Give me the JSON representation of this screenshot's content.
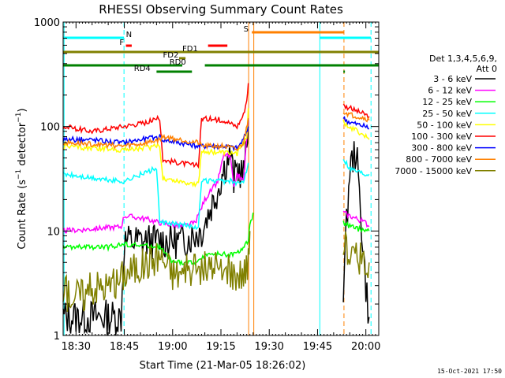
{
  "chart_data": {
    "type": "line",
    "title": "RHESSI Observing Summary Count Rates",
    "xlabel": "Start Time (21-Mar-05 18:26:02)",
    "ylabel_prefix": "Count Rate (s",
    "ylabel_exp": "−1",
    "ylabel_mid": " detector",
    "ylabel_suffix": ")",
    "yscale": "log",
    "ylim": [
      1,
      1000
    ],
    "xlim": [
      26.0,
      124.0
    ],
    "x_unit": "minutes after 18:00 UT",
    "xticks": [
      {
        "value": 30,
        "label": "18:30"
      },
      {
        "value": 45,
        "label": "18:45"
      },
      {
        "value": 60,
        "label": "19:00"
      },
      {
        "value": 75,
        "label": "19:15"
      },
      {
        "value": 90,
        "label": "19:30"
      },
      {
        "value": 105,
        "label": "19:45"
      },
      {
        "value": 120,
        "label": "20:00"
      }
    ],
    "yticks": [
      {
        "value": 1,
        "label": "1"
      },
      {
        "value": 10,
        "label": "10"
      },
      {
        "value": 100,
        "label": "100"
      },
      {
        "value": 1000,
        "label": "1000"
      }
    ],
    "legend_header": [
      "Det 1,3,4,5,6,9,",
      "Att 0"
    ],
    "legend_position": "right",
    "grid": false,
    "series": [
      {
        "name": "3 - 6 keV",
        "color": "#000000",
        "points": [
          [
            26,
            1.5
          ],
          [
            44,
            1.5
          ],
          [
            45,
            8
          ],
          [
            52,
            8
          ],
          [
            58,
            8
          ],
          [
            63,
            8
          ],
          [
            69,
            10
          ],
          [
            74,
            25
          ],
          [
            76,
            40
          ],
          [
            78,
            55
          ],
          [
            79,
            30
          ],
          [
            80,
            40
          ],
          [
            82,
            35
          ],
          [
            83,
            60
          ],
          [
            83.5,
            120
          ]
        ],
        "points2": [
          [
            113,
            3
          ],
          [
            115,
            40
          ],
          [
            117,
            60
          ],
          [
            120,
            3
          ],
          [
            121,
            1.5
          ]
        ]
      },
      {
        "name": "6 - 12 keV",
        "color": "#ff00ff",
        "points": [
          [
            26,
            10
          ],
          [
            44,
            11
          ],
          [
            45,
            14
          ],
          [
            52,
            13
          ],
          [
            56,
            12
          ],
          [
            63,
            11
          ],
          [
            67,
            12
          ],
          [
            70,
            20
          ],
          [
            74,
            30
          ],
          [
            76,
            55
          ],
          [
            78,
            50
          ],
          [
            79,
            25
          ],
          [
            80,
            35
          ],
          [
            82,
            30
          ],
          [
            83.5,
            120
          ]
        ],
        "points2": [
          [
            113,
            15
          ],
          [
            115,
            14
          ],
          [
            120,
            12
          ],
          [
            121,
            11
          ]
        ]
      },
      {
        "name": "12 - 25 keV",
        "color": "#00ff00",
        "points": [
          [
            26,
            7
          ],
          [
            40,
            7
          ],
          [
            45,
            7.5
          ],
          [
            56,
            7
          ],
          [
            60,
            5
          ],
          [
            68,
            5
          ],
          [
            70,
            6
          ],
          [
            80,
            6
          ],
          [
            83.5,
            8
          ],
          [
            84,
            11
          ],
          [
            85,
            15
          ]
        ],
        "points2": [
          [
            113,
            12
          ],
          [
            115,
            11
          ],
          [
            120,
            10
          ],
          [
            121,
            10
          ]
        ]
      },
      {
        "name": "25 - 50 keV",
        "color": "#00ffff",
        "points": [
          [
            26,
            35
          ],
          [
            35,
            32
          ],
          [
            44,
            30
          ],
          [
            45,
            30
          ],
          [
            55,
            40
          ],
          [
            56,
            12
          ],
          [
            68,
            11
          ],
          [
            69,
            30
          ],
          [
            75,
            30
          ],
          [
            78,
            30
          ],
          [
            80,
            28
          ],
          [
            82,
            30
          ],
          [
            83.5,
            45
          ]
        ],
        "points2": [
          [
            113,
            50
          ],
          [
            115,
            40
          ],
          [
            120,
            35
          ],
          [
            121,
            35
          ]
        ]
      },
      {
        "name": "50 - 100 keV",
        "color": "#ffff00",
        "points": [
          [
            26,
            65
          ],
          [
            35,
            62
          ],
          [
            44,
            60
          ],
          [
            50,
            62
          ],
          [
            56,
            65
          ],
          [
            57,
            32
          ],
          [
            68,
            28
          ],
          [
            69,
            58
          ],
          [
            76,
            56
          ],
          [
            80,
            55
          ],
          [
            83,
            80
          ],
          [
            83.5,
            150
          ]
        ],
        "points2": [
          [
            113,
            110
          ],
          [
            115,
            100
          ],
          [
            120,
            80
          ],
          [
            121,
            75
          ]
        ]
      },
      {
        "name": "100 - 300 keV",
        "color": "#ff0000",
        "points": [
          [
            26,
            100
          ],
          [
            35,
            90
          ],
          [
            44,
            100
          ],
          [
            52,
            110
          ],
          [
            56,
            120
          ],
          [
            57,
            48
          ],
          [
            68,
            42
          ],
          [
            69,
            120
          ],
          [
            76,
            115
          ],
          [
            80,
            100
          ],
          [
            82,
            130
          ],
          [
            83,
            180
          ],
          [
            83.5,
            260
          ]
        ],
        "points2": [
          [
            113,
            160
          ],
          [
            115,
            150
          ],
          [
            120,
            130
          ],
          [
            121,
            125
          ]
        ]
      },
      {
        "name": "300 - 800 keV",
        "color": "#0000ff",
        "points": [
          [
            26,
            75
          ],
          [
            35,
            75
          ],
          [
            44,
            70
          ],
          [
            50,
            75
          ],
          [
            56,
            80
          ],
          [
            57,
            75
          ],
          [
            68,
            65
          ],
          [
            69,
            65
          ],
          [
            76,
            65
          ],
          [
            80,
            62
          ],
          [
            82,
            75
          ],
          [
            83.5,
            100
          ]
        ],
        "points2": [
          [
            113,
            120
          ],
          [
            115,
            110
          ],
          [
            120,
            100
          ],
          [
            121,
            95
          ]
        ]
      },
      {
        "name": "800 - 7000 keV",
        "color": "#ff8000",
        "points": [
          [
            26,
            70
          ],
          [
            35,
            68
          ],
          [
            44,
            65
          ],
          [
            50,
            68
          ],
          [
            56,
            75
          ],
          [
            57,
            80
          ],
          [
            68,
            70
          ],
          [
            69,
            65
          ],
          [
            76,
            65
          ],
          [
            80,
            60
          ],
          [
            82,
            70
          ],
          [
            83.5,
            120
          ]
        ],
        "points2": [
          [
            113,
            140
          ],
          [
            115,
            130
          ],
          [
            120,
            120
          ],
          [
            121,
            115
          ]
        ]
      },
      {
        "name": "7000 - 15000 keV",
        "color": "#808000",
        "points": [
          [
            26,
            2.5
          ],
          [
            33,
            2.5
          ],
          [
            36,
            3
          ],
          [
            42,
            3
          ],
          [
            45,
            4
          ],
          [
            52,
            5
          ],
          [
            56,
            6
          ],
          [
            60,
            4
          ],
          [
            66,
            4
          ],
          [
            70,
            4.5
          ],
          [
            76,
            4
          ],
          [
            82,
            4
          ],
          [
            83.5,
            5
          ],
          [
            84,
            10
          ]
        ],
        "points2": [
          [
            113,
            7
          ],
          [
            115,
            6
          ],
          [
            120,
            5
          ],
          [
            121,
            5
          ]
        ]
      }
    ],
    "time_markers": [
      {
        "x": 44.9,
        "color": "#00ffff",
        "style": "dashed"
      },
      {
        "x": 26.3,
        "color": "#00ffff",
        "style": "solid"
      },
      {
        "x": 83.6,
        "color": "#ff8000",
        "style": "solid"
      },
      {
        "x": 85.2,
        "color": "#ff8000",
        "style": "solid"
      },
      {
        "x": 105.7,
        "color": "#00ffff",
        "style": "solid"
      },
      {
        "x": 113.2,
        "color": "#ff8000",
        "style": "dashed"
      },
      {
        "x": 121.6,
        "color": "#00ffff",
        "style": "dashed"
      }
    ],
    "flag_bars": [
      {
        "label": "N",
        "color": "#00ffff",
        "y": 1000,
        "segments": [
          [
            26.0,
            44.9
          ],
          [
            105.7,
            121.6
          ]
        ],
        "label_x": 45.5
      },
      {
        "label": "S",
        "color": "#ff8000",
        "y": 1000,
        "segments": [
          [
            84.6,
            113.2
          ]
        ],
        "label_x": 82.0
      },
      {
        "label": "F",
        "color": "#ff0000",
        "y": 1000,
        "segments": [
          [
            45.5,
            47.3
          ],
          [
            71.0,
            77.0
          ]
        ],
        "label_x": 43.5
      },
      {
        "label": "FD1",
        "color": "#808000",
        "y": 1000,
        "segments": [
          [
            26.0,
            124.0
          ]
        ],
        "label_x": 63.0
      },
      {
        "label": "FD2",
        "color": "#808000",
        "y": 1000,
        "segments": [
          [
            62.0,
            64.0
          ]
        ],
        "label_x": 57.0
      },
      {
        "label": "RD0",
        "color": "#008000",
        "y": 1000,
        "segments": [
          [
            26.0,
            63.0
          ],
          [
            70.0,
            124.0
          ]
        ],
        "label_x": 59.0
      },
      {
        "label": "RD4",
        "color": "#008000",
        "y": 1000,
        "segments": [
          [
            55.0,
            66.0
          ],
          [
            113.0,
            113.5
          ]
        ],
        "label_x": 48.0
      }
    ]
  },
  "footer_date": "15-Oct-2021 17:50"
}
